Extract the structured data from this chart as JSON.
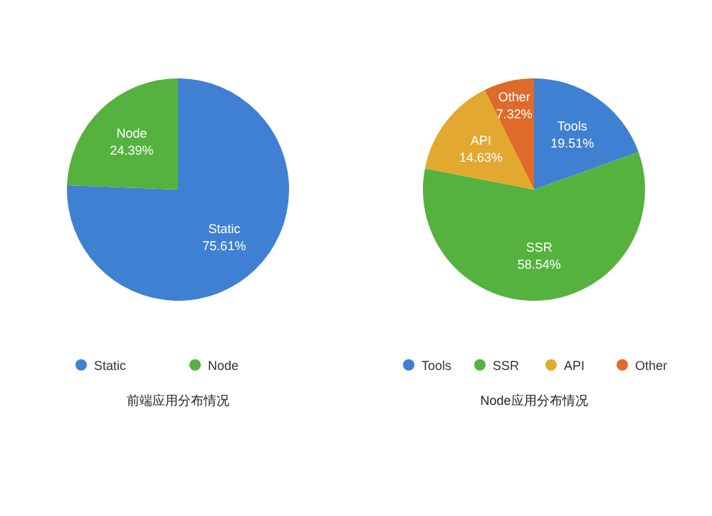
{
  "chart_data": [
    {
      "type": "pie",
      "title": "前端应用分布情况",
      "categories": [
        "Static",
        "Node"
      ],
      "values": [
        75.61,
        24.39
      ],
      "value_labels": [
        "75.61%",
        "24.39%"
      ],
      "colors": [
        "#3f80d2",
        "#55b23e"
      ],
      "legend": "bottom"
    },
    {
      "type": "pie",
      "title": "Node应用分布情况",
      "categories": [
        "Tools",
        "SSR",
        "API",
        "Other"
      ],
      "values": [
        19.51,
        58.54,
        14.63,
        7.32
      ],
      "value_labels": [
        "19.51%",
        "58.54%",
        "14.63%",
        "7.32%"
      ],
      "colors": [
        "#3f80d2",
        "#55b23e",
        "#e2a830",
        "#df6b2b"
      ],
      "legend": "bottom"
    }
  ]
}
